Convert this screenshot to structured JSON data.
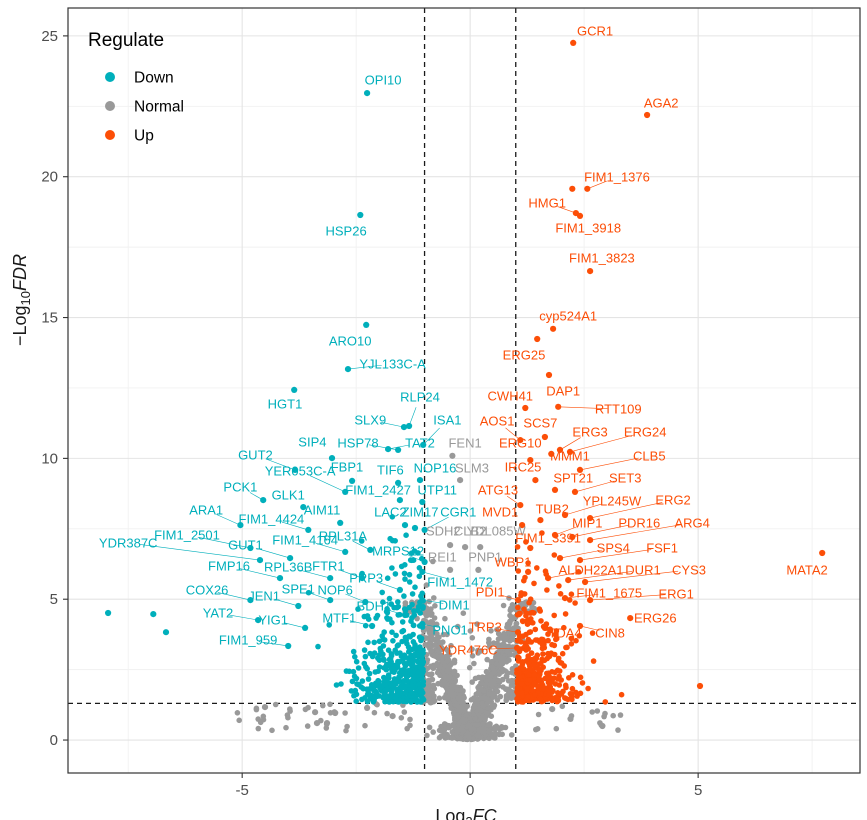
{
  "legend": {
    "title": "Regulate",
    "items": [
      {
        "label": "Down",
        "color": "#00AFBB"
      },
      {
        "label": "Normal",
        "color": "#999999"
      },
      {
        "label": "Up",
        "color": "#FC4E07"
      }
    ]
  },
  "colors": {
    "down": "#00AFBB",
    "normal": "#999999",
    "up": "#FC4E07",
    "grid_major": "#E4E4E4",
    "grid_minor": "#F1F1F1",
    "panel_border": "#333333",
    "axis_text": "#4D4D4D",
    "axis_title": "#1A1A1A",
    "threshold_line": "#1A1A1A"
  },
  "chart_data": {
    "type": "scatter",
    "title": "",
    "xlabel_parts": {
      "prefix": "Log",
      "sub": "2",
      "italic": "FC"
    },
    "ylabel_parts": {
      "minus": "−",
      "prefix": "Log",
      "sub": "10",
      "italic": "FDR"
    },
    "xlim": [
      -8.82,
      8.55
    ],
    "ylim": [
      -1.17,
      25.99
    ],
    "x_ticks": [
      -5,
      0,
      5
    ],
    "x_minor": [
      -7.5,
      -2.5,
      2.5,
      7.5
    ],
    "y_ticks": [
      0,
      5,
      10,
      15,
      20,
      25
    ],
    "y_minor": [
      2.5,
      7.5,
      12.5,
      17.5,
      22.5
    ],
    "grid": true,
    "legend_position": "inside-top-left",
    "thresholds": {
      "fc_lines": [
        -1,
        1
      ],
      "fdr_line": 1.301
    },
    "gene_fields": [
      "name",
      "group",
      "fc",
      "fdr",
      "label_fc",
      "label_fdr"
    ],
    "labeled_genes": [
      [
        "OPI10",
        "down",
        -2.26,
        22.97,
        -1.91,
        23.43
      ],
      [
        "HSP26",
        "down",
        -2.41,
        18.64,
        -2.72,
        18.07
      ],
      [
        "ARO10",
        "down",
        -2.28,
        14.74,
        -2.63,
        14.17
      ],
      [
        "YJL133C-A",
        "down",
        -2.68,
        13.17,
        -1.7,
        13.35
      ],
      [
        "HGT1",
        "down",
        -3.86,
        12.43,
        -4.06,
        11.93
      ],
      [
        "RLP24",
        "down",
        -1.34,
        11.15,
        -1.1,
        12.18
      ],
      [
        "SLX9",
        "down",
        -1.45,
        11.11,
        -2.19,
        11.36
      ],
      [
        "ISA1",
        "down",
        -1.03,
        10.48,
        -0.5,
        11.36
      ],
      [
        "SIP4",
        "down",
        -3.03,
        10.01,
        -3.46,
        10.58
      ],
      [
        "HSP78",
        "down",
        -1.58,
        10.3,
        -2.46,
        10.55
      ],
      [
        "TAT2",
        "down",
        -1.8,
        10.33,
        -1.1,
        10.55
      ],
      [
        "GUT2",
        "down",
        -3.84,
        9.59,
        -4.71,
        10.12
      ],
      [
        "YER053C-A",
        "down",
        -2.74,
        8.81,
        -3.73,
        9.55
      ],
      [
        "FBP1",
        "down",
        -2.59,
        9.2,
        -2.7,
        9.69
      ],
      [
        "TIF6",
        "down",
        -1.58,
        9.13,
        -1.75,
        9.59
      ],
      [
        "NOP16",
        "down",
        -1.1,
        9.23,
        -0.77,
        9.66
      ],
      [
        "PCK1",
        "down",
        -4.54,
        8.52,
        -5.04,
        8.98
      ],
      [
        "GLK1",
        "down",
        -3.66,
        8.27,
        -3.99,
        8.7
      ],
      [
        "FIM1_2427",
        "down",
        -1.54,
        8.52,
        -2.02,
        8.88
      ],
      [
        "UTP11",
        "down",
        -1.05,
        8.45,
        -0.72,
        8.88
      ],
      [
        "ARA1",
        "down",
        -5.04,
        7.63,
        -5.79,
        8.17
      ],
      [
        "FIM1_4424",
        "down",
        -3.55,
        7.46,
        -4.36,
        7.85
      ],
      [
        "AIM11",
        "down",
        -2.85,
        7.71,
        -3.25,
        8.17
      ],
      [
        "LAC2",
        "down",
        -1.43,
        7.63,
        -1.75,
        8.1
      ],
      [
        "ZIM17",
        "down",
        -1.21,
        7.53,
        -1.1,
        8.1
      ],
      [
        "CGR1",
        "down",
        -1.0,
        7.46,
        -0.26,
        8.1
      ],
      [
        "FIM1_2501",
        "down",
        -4.82,
        6.82,
        -6.21,
        7.28
      ],
      [
        "YDR387C",
        "down",
        -4.61,
        6.39,
        -7.5,
        7.0
      ],
      [
        "GUT1",
        "down",
        -3.95,
        6.46,
        -4.93,
        6.92
      ],
      [
        "FIM1_4164",
        "down",
        -2.74,
        6.68,
        -3.62,
        7.1
      ],
      [
        "RPL31A",
        "down",
        -2.19,
        6.75,
        -2.79,
        7.24
      ],
      [
        "MRPS12",
        "down",
        -1.0,
        6.32,
        -1.58,
        6.71
      ],
      [
        "FMP16",
        "down",
        -4.17,
        5.75,
        -5.29,
        6.18
      ],
      [
        "RPL36B",
        "down",
        -3.07,
        5.75,
        -3.99,
        6.14
      ],
      [
        "FTR1",
        "down",
        -2.37,
        5.75,
        -3.11,
        6.18
      ],
      [
        "PRP3",
        "down",
        -1.54,
        5.33,
        -2.28,
        5.75
      ],
      [
        "COX26",
        "down",
        -4.82,
        4.97,
        -5.77,
        5.33
      ],
      [
        "JEN1",
        "down",
        -3.77,
        4.76,
        -4.52,
        5.11
      ],
      [
        "SPE1",
        "down",
        -3.07,
        4.97,
        -3.77,
        5.36
      ],
      [
        "NOP6",
        "down",
        -2.3,
        4.9,
        -2.96,
        5.33
      ],
      [
        "YAT2",
        "down",
        -4.65,
        4.26,
        -5.53,
        4.51
      ],
      [
        "YIG1",
        "down",
        -3.62,
        3.98,
        -4.32,
        4.26
      ],
      [
        "BDH1",
        "down",
        -1.43,
        4.44,
        -2.11,
        4.76
      ],
      [
        "MTF1",
        "down",
        -2.15,
        4.05,
        -2.87,
        4.33
      ],
      [
        "FIM1_959",
        "down",
        -3.99,
        3.34,
        -4.87,
        3.55
      ],
      [
        "FIM1_1472",
        "down",
        -1.05,
        5.97,
        -0.22,
        5.61
      ],
      [
        "DIM1",
        "down",
        -1.05,
        4.97,
        -0.35,
        4.79
      ],
      [
        "PNO1",
        "down",
        -1.05,
        4.12,
        -0.44,
        3.91
      ],
      [
        "FEN1",
        "normal",
        -0.39,
        10.09,
        -0.11,
        10.55
      ],
      [
        "SLM3",
        "normal",
        -0.22,
        9.23,
        0.04,
        9.66
      ],
      [
        "SDH2",
        "normal",
        -0.44,
        6.92,
        -0.59,
        7.42
      ],
      [
        "CLB2",
        "normal",
        -0.11,
        6.85,
        0.0,
        7.42
      ],
      [
        "YDL085W",
        "normal",
        0.22,
        6.85,
        0.57,
        7.42
      ],
      [
        "REI1",
        "normal",
        -0.44,
        6.04,
        -0.61,
        6.5
      ],
      [
        "PNP1",
        "normal",
        0.18,
        6.04,
        0.33,
        6.5
      ],
      [
        "GCR1",
        "up",
        2.26,
        24.75,
        2.74,
        25.18
      ],
      [
        "AGA2",
        "up",
        3.88,
        22.19,
        4.19,
        22.62
      ],
      [
        "FIM1_1376",
        "up",
        2.57,
        19.57,
        3.22,
        19.99
      ],
      [
        "HMG1",
        "up",
        2.32,
        18.71,
        1.69,
        19.07
      ],
      [
        "FIM1_3918",
        "up",
        2.41,
        18.61,
        2.59,
        18.18
      ],
      [
        "FIM1_3823",
        "up",
        2.63,
        16.65,
        2.89,
        17.12
      ],
      [
        "cyp524A1",
        "up",
        1.82,
        14.6,
        2.15,
        15.06
      ],
      [
        "ERG25",
        "up",
        1.47,
        14.24,
        1.18,
        13.67
      ],
      [
        "DAP1",
        "up",
        1.73,
        12.96,
        2.04,
        12.39
      ],
      [
        "RTT109",
        "up",
        1.93,
        11.83,
        3.25,
        11.75
      ],
      [
        "CWH41",
        "up",
        1.21,
        11.79,
        0.88,
        12.22
      ],
      [
        "AOS1",
        "up",
        1.1,
        10.65,
        0.59,
        11.33
      ],
      [
        "SCS7",
        "up",
        1.64,
        10.76,
        1.54,
        11.26
      ],
      [
        "ERG3",
        "up",
        1.97,
        10.3,
        2.63,
        10.94
      ],
      [
        "ERG24",
        "up",
        2.19,
        10.23,
        3.84,
        10.94
      ],
      [
        "ERG10",
        "up",
        1.32,
        9.94,
        1.1,
        10.55
      ],
      [
        "MMM1",
        "up",
        1.78,
        10.16,
        2.19,
        10.09
      ],
      [
        "CLB5",
        "up",
        2.41,
        9.59,
        3.93,
        10.09
      ],
      [
        "IRC25",
        "up",
        1.43,
        9.23,
        1.16,
        9.69
      ],
      [
        "SPT21",
        "up",
        1.86,
        8.88,
        2.26,
        9.3
      ],
      [
        "SET3",
        "up",
        2.3,
        8.81,
        3.4,
        9.3
      ],
      [
        "ATG13",
        "up",
        1.1,
        8.34,
        0.61,
        8.88
      ],
      [
        "TUB2",
        "up",
        1.54,
        7.81,
        1.8,
        8.2
      ],
      [
        "YPL245W",
        "up",
        2.08,
        7.99,
        3.11,
        8.49
      ],
      [
        "ERG2",
        "up",
        2.63,
        7.88,
        4.45,
        8.52
      ],
      [
        "MVD1",
        "up",
        1.14,
        7.63,
        0.66,
        8.1
      ],
      [
        "MIP1",
        "up",
        1.86,
        7.28,
        2.57,
        7.71
      ],
      [
        "PDR16",
        "up",
        2.24,
        7.21,
        3.71,
        7.71
      ],
      [
        "ARG4",
        "up",
        2.63,
        7.1,
        4.87,
        7.71
      ],
      [
        "FIM1_3391",
        "up",
        1.32,
        6.82,
        1.71,
        7.17
      ],
      [
        "SPS4",
        "up",
        1.97,
        6.46,
        3.14,
        6.82
      ],
      [
        "FSF1",
        "up",
        2.41,
        6.39,
        4.21,
        6.82
      ],
      [
        "WBP1",
        "up",
        1.27,
        5.97,
        0.94,
        6.32
      ],
      [
        "ALDH22A1",
        "up",
        1.71,
        5.75,
        2.65,
        6.04
      ],
      [
        "DUR1",
        "up",
        2.15,
        5.68,
        3.79,
        6.04
      ],
      [
        "CYS3",
        "up",
        2.52,
        5.61,
        4.8,
        6.04
      ],
      [
        "MATA2",
        "up",
        7.72,
        6.64,
        7.39,
        6.04
      ],
      [
        "FIM1_1675",
        "up",
        2.08,
        5.04,
        3.05,
        5.22
      ],
      [
        "ERG1",
        "up",
        2.63,
        4.97,
        4.52,
        5.19
      ],
      [
        "PDI1",
        "up",
        1.05,
        4.97,
        0.44,
        5.26
      ],
      [
        "ERG26",
        "up",
        3.51,
        4.33,
        4.06,
        4.33
      ],
      [
        "TDA4",
        "up",
        1.64,
        3.98,
        2.08,
        3.8
      ],
      [
        "CIN8",
        "up",
        2.41,
        4.05,
        3.07,
        3.8
      ],
      [
        "TRP3",
        "up",
        1.05,
        3.83,
        0.33,
        4.01
      ],
      [
        "YDR476C",
        "up",
        1.03,
        3.27,
        -0.04,
        3.2
      ]
    ],
    "extra_points": [
      {
        "group": "up",
        "fc": 2.24,
        "fdr": 19.57
      },
      {
        "group": "down",
        "fc": -7.94,
        "fdr": 4.51
      },
      {
        "group": "down",
        "fc": -6.95,
        "fdr": 4.47
      },
      {
        "group": "down",
        "fc": -6.67,
        "fdr": 3.83
      },
      {
        "group": "up",
        "fc": 5.04,
        "fdr": 1.92
      },
      {
        "group": "normal",
        "fc": -4.5,
        "fdr": 1.17
      },
      {
        "group": "normal",
        "fc": -3.4,
        "fdr": 0.99
      },
      {
        "group": "normal",
        "fc": -2.96,
        "fdr": 0.96
      },
      {
        "group": "normal",
        "fc": -3.36,
        "fdr": 0.6
      },
      {
        "group": "normal",
        "fc": -3.14,
        "fdr": 0.6
      },
      {
        "group": "normal",
        "fc": -2.26,
        "fdr": 1.14
      },
      {
        "group": "normal",
        "fc": -1.7,
        "fdr": 0.85
      },
      {
        "group": "normal",
        "fc": 2.2,
        "fdr": 0.75
      },
      {
        "group": "normal",
        "fc": 1.8,
        "fdr": 1.1
      },
      {
        "group": "normal",
        "fc": 2.9,
        "fdr": 0.5
      }
    ],
    "clouds": {
      "seed": 7,
      "down_n": 430,
      "up_n": 390,
      "gray_v_n": 950,
      "bottom_blob_n": 160,
      "gray_cols_n": 130,
      "gray_mid_n": 45,
      "gray_low_n": 55
    }
  }
}
